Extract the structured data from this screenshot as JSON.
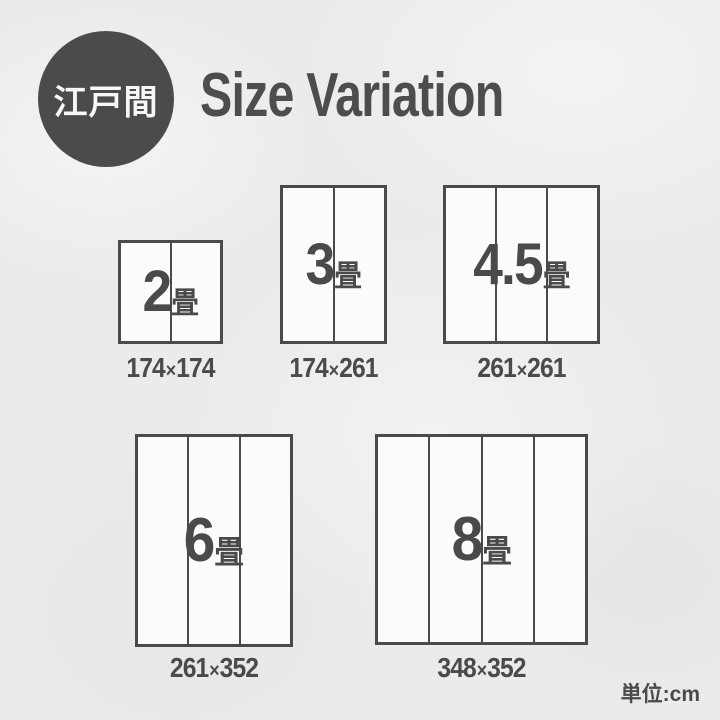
{
  "page": {
    "badge_label": "江戸間",
    "title": "Size Variation",
    "unit_note": "単位:cm",
    "dim_separator": "×"
  },
  "colors": {
    "ink": "#4a4a4a",
    "paper_background": "#ebebe9",
    "mat_fill": "#fbfbfa",
    "badge_background": "#4b4b4b",
    "badge_text": "#f7f7f5"
  },
  "mats": [
    {
      "name": "2畳",
      "count": "2",
      "unit": "畳",
      "panels": 2,
      "dim_w": "174",
      "dim_h": "174"
    },
    {
      "name": "3畳",
      "count": "3",
      "unit": "畳",
      "panels": 2,
      "dim_w": "174",
      "dim_h": "261"
    },
    {
      "name": "4.5畳",
      "count": "4.5",
      "unit": "畳",
      "panels": 3,
      "dim_w": "261",
      "dim_h": "261"
    },
    {
      "name": "6畳",
      "count": "6",
      "unit": "畳",
      "panels": 3,
      "dim_w": "261",
      "dim_h": "352"
    },
    {
      "name": "8畳",
      "count": "8",
      "unit": "畳",
      "panels": 4,
      "dim_w": "348",
      "dim_h": "352"
    }
  ]
}
